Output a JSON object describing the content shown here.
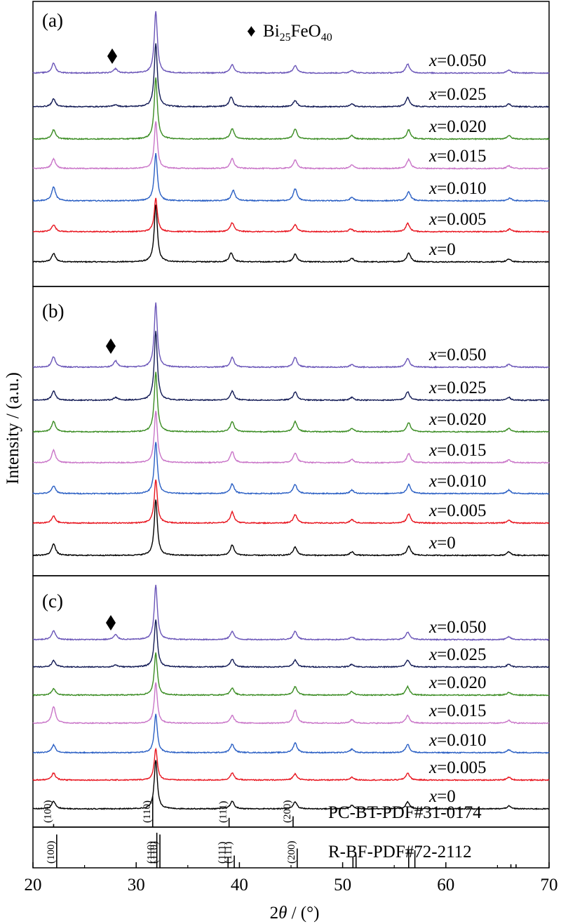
{
  "figure": {
    "ylabel": "Intensity / (a.u.)",
    "xlabel_prefix": "2",
    "xlabel_theta": "θ",
    "xlabel_suffix": " / (°)",
    "x_tick_labels": [
      "20",
      "30",
      "40",
      "50",
      "60",
      "70"
    ]
  },
  "chart_data": {
    "type": "line",
    "x_range": [
      20,
      70
    ],
    "x_ticks": [
      20,
      30,
      40,
      50,
      60,
      70
    ],
    "grid": false,
    "series_colors": {
      "x=0": "#000000",
      "x=0.005": "#e8141e",
      "x=0.010": "#2a5fc4",
      "x=0.015": "#c975c8",
      "x=0.020": "#3a8c22",
      "x=0.025": "#121a55",
      "x=0.050": "#6a55b8"
    },
    "bi25_marker_label": {
      "symbol": "♦",
      "base": "Bi",
      "sub1": "25",
      "mid": "FeO",
      "sub2": "40"
    },
    "panels": [
      {
        "label": "(a)",
        "series": [
          {
            "name": "x=0",
            "x_label": "x",
            "value_label": "=0",
            "color": "#000000",
            "peaks": [
              [
                22.0,
                12
              ],
              [
                31.9,
                82
              ],
              [
                39.2,
                13
              ],
              [
                45.4,
                11
              ],
              [
                50.9,
                5
              ],
              [
                56.4,
                13
              ],
              [
                66.1,
                4
              ]
            ]
          },
          {
            "name": "x=0.005",
            "x_label": "x",
            "value_label": "=0.005",
            "color": "#e8141e",
            "peaks": [
              [
                22.0,
                10
              ],
              [
                31.9,
                48
              ],
              [
                39.3,
                13
              ],
              [
                45.4,
                10
              ],
              [
                50.8,
                4
              ],
              [
                56.3,
                12
              ],
              [
                66.2,
                4
              ]
            ]
          },
          {
            "name": "x=0.010",
            "x_label": "x",
            "value_label": "=0.010",
            "color": "#2a5fc4",
            "peaks": [
              [
                22.0,
                20
              ],
              [
                31.9,
                68
              ],
              [
                39.4,
                15
              ],
              [
                45.4,
                17
              ],
              [
                50.9,
                5
              ],
              [
                56.4,
                13
              ],
              [
                66.2,
                4
              ]
            ]
          },
          {
            "name": "x=0.015",
            "x_label": "x",
            "value_label": "=0.015",
            "color": "#c975c8",
            "peaks": [
              [
                22.0,
                14
              ],
              [
                31.9,
                67
              ],
              [
                39.3,
                14
              ],
              [
                45.4,
                12
              ],
              [
                50.9,
                5
              ],
              [
                56.4,
                13
              ],
              [
                66.1,
                4
              ]
            ]
          },
          {
            "name": "x=0.020",
            "x_label": "x",
            "value_label": "=0.020",
            "color": "#3a8c22",
            "peaks": [
              [
                22.0,
                13
              ],
              [
                31.9,
                88
              ],
              [
                39.3,
                15
              ],
              [
                45.4,
                14
              ],
              [
                50.9,
                5
              ],
              [
                56.4,
                13
              ],
              [
                66.1,
                5
              ]
            ]
          },
          {
            "name": "x=0.025",
            "x_label": "x",
            "value_label": "=0.025",
            "color": "#121a55",
            "peaks": [
              [
                22.0,
                11
              ],
              [
                28.0,
                3
              ],
              [
                31.9,
                90
              ],
              [
                39.2,
                14
              ],
              [
                45.4,
                9
              ],
              [
                50.9,
                4
              ],
              [
                56.3,
                13
              ],
              [
                66.1,
                4
              ]
            ]
          },
          {
            "name": "x=0.050",
            "x_label": "x",
            "value_label": "=0.050",
            "color": "#6a55b8",
            "peaks": [
              [
                22.0,
                14
              ],
              [
                28.0,
                6
              ],
              [
                31.9,
                88
              ],
              [
                39.3,
                12
              ],
              [
                45.4,
                11
              ],
              [
                50.9,
                4
              ],
              [
                56.3,
                13
              ],
              [
                66.1,
                4
              ]
            ]
          }
        ]
      },
      {
        "label": "(b)",
        "series": [
          {
            "name": "x=0",
            "x_label": "x",
            "value_label": "=0",
            "color": "#000000",
            "peaks": [
              [
                22.0,
                17
              ],
              [
                31.9,
                80
              ],
              [
                39.3,
                15
              ],
              [
                45.4,
                12
              ],
              [
                50.9,
                5
              ],
              [
                56.4,
                13
              ],
              [
                66.1,
                5
              ]
            ]
          },
          {
            "name": "x=0.005",
            "x_label": "x",
            "value_label": "=0.005",
            "color": "#e8141e",
            "peaks": [
              [
                22.0,
                10
              ],
              [
                31.9,
                62
              ],
              [
                39.3,
                16
              ],
              [
                45.4,
                12
              ],
              [
                50.9,
                5
              ],
              [
                56.4,
                13
              ],
              [
                66.1,
                4
              ]
            ]
          },
          {
            "name": "x=0.010",
            "x_label": "x",
            "value_label": "=0.010",
            "color": "#2a5fc4",
            "peaks": [
              [
                22.0,
                11
              ],
              [
                31.9,
                74
              ],
              [
                39.3,
                14
              ],
              [
                45.4,
                13
              ],
              [
                50.9,
                5
              ],
              [
                56.4,
                13
              ],
              [
                66.1,
                5
              ]
            ]
          },
          {
            "name": "x=0.015",
            "x_label": "x",
            "value_label": "=0.015",
            "color": "#c975c8",
            "peaks": [
              [
                22.0,
                18
              ],
              [
                31.9,
                74
              ],
              [
                39.3,
                16
              ],
              [
                45.4,
                14
              ],
              [
                50.9,
                5
              ],
              [
                56.4,
                13
              ],
              [
                66.1,
                4
              ]
            ]
          },
          {
            "name": "x=0.020",
            "x_label": "x",
            "value_label": "=0.020",
            "color": "#3a8c22",
            "peaks": [
              [
                22.0,
                15
              ],
              [
                31.9,
                85
              ],
              [
                39.3,
                15
              ],
              [
                45.4,
                15
              ],
              [
                50.9,
                5
              ],
              [
                56.4,
                13
              ],
              [
                66.1,
                5
              ]
            ]
          },
          {
            "name": "x=0.025",
            "x_label": "x",
            "value_label": "=0.025",
            "color": "#121a55",
            "peaks": [
              [
                22.0,
                13
              ],
              [
                28.0,
                4
              ],
              [
                31.9,
                98
              ],
              [
                39.3,
                13
              ],
              [
                45.4,
                12
              ],
              [
                50.9,
                4
              ],
              [
                56.3,
                12
              ],
              [
                66.1,
                4
              ]
            ]
          },
          {
            "name": "x=0.050",
            "x_label": "x",
            "value_label": "=0.050",
            "color": "#6a55b8",
            "peaks": [
              [
                22.0,
                15
              ],
              [
                28.0,
                9
              ],
              [
                31.9,
                92
              ],
              [
                39.3,
                14
              ],
              [
                45.4,
                14
              ],
              [
                50.9,
                4
              ],
              [
                56.3,
                13
              ],
              [
                66.1,
                4
              ]
            ]
          }
        ]
      },
      {
        "label": "(c)",
        "series": [
          {
            "name": "x=0",
            "x_label": "x",
            "value_label": "=0",
            "color": "#000000",
            "peaks": [
              [
                22.0,
                11
              ],
              [
                31.9,
                70
              ],
              [
                39.3,
                11
              ],
              [
                45.4,
                10
              ],
              [
                50.9,
                5
              ],
              [
                56.3,
                10
              ],
              [
                66.1,
                4
              ]
            ]
          },
          {
            "name": "x=0.005",
            "x_label": "x",
            "value_label": "=0.005",
            "color": "#e8141e",
            "peaks": [
              [
                22.0,
                10
              ],
              [
                31.9,
                45
              ],
              [
                39.3,
                10
              ],
              [
                45.4,
                9
              ],
              [
                50.9,
                4
              ],
              [
                56.3,
                10
              ],
              [
                66.1,
                4
              ]
            ]
          },
          {
            "name": "x=0.010",
            "x_label": "x",
            "value_label": "=0.010",
            "color": "#2a5fc4",
            "peaks": [
              [
                22.0,
                11
              ],
              [
                31.9,
                55
              ],
              [
                39.3,
                12
              ],
              [
                45.4,
                14
              ],
              [
                50.9,
                5
              ],
              [
                56.3,
                12
              ],
              [
                66.1,
                4
              ]
            ]
          },
          {
            "name": "x=0.015",
            "x_label": "x",
            "value_label": "=0.015",
            "color": "#c975c8",
            "peaks": [
              [
                22.0,
                24
              ],
              [
                31.9,
                58
              ],
              [
                39.3,
                11
              ],
              [
                45.4,
                19
              ],
              [
                50.9,
                5
              ],
              [
                56.3,
                11
              ],
              [
                66.1,
                4
              ]
            ]
          },
          {
            "name": "x=0.020",
            "x_label": "x",
            "value_label": "=0.020",
            "color": "#3a8c22",
            "peaks": [
              [
                22.0,
                9
              ],
              [
                31.9,
                60
              ],
              [
                39.3,
                10
              ],
              [
                45.4,
                12
              ],
              [
                50.9,
                5
              ],
              [
                56.3,
                12
              ],
              [
                66.1,
                4
              ]
            ]
          },
          {
            "name": "x=0.025",
            "x_label": "x",
            "value_label": "=0.025",
            "color": "#121a55",
            "peaks": [
              [
                22.0,
                9
              ],
              [
                28.0,
                3
              ],
              [
                31.9,
                68
              ],
              [
                39.3,
                11
              ],
              [
                45.4,
                10
              ],
              [
                50.9,
                4
              ],
              [
                56.3,
                10
              ],
              [
                66.1,
                4
              ]
            ]
          },
          {
            "name": "x=0.050",
            "x_label": "x",
            "value_label": "=0.050",
            "color": "#6a55b8",
            "peaks": [
              [
                22.0,
                13
              ],
              [
                28.0,
                7
              ],
              [
                31.9,
                78
              ],
              [
                39.3,
                12
              ],
              [
                45.4,
                12
              ],
              [
                50.9,
                4
              ],
              [
                56.3,
                11
              ],
              [
                66.1,
                4
              ]
            ]
          }
        ]
      }
    ],
    "reference_patterns": [
      {
        "name": "PC-BT-PDF#31-0174",
        "lines": [
          {
            "x": 22.0,
            "h": 0.1
          },
          {
            "x": 31.6,
            "h": 1.0
          },
          {
            "x": 39.0,
            "h": 0.3
          },
          {
            "x": 45.2,
            "h": 0.35
          }
        ],
        "hkl": [
          {
            "x": 22.0,
            "text": "(100)"
          },
          {
            "x": 31.6,
            "text": "(110)"
          },
          {
            "x": 39.0,
            "text": "(111)"
          },
          {
            "x": 45.2,
            "text": "(200)"
          }
        ]
      },
      {
        "name": "R-BF-PDF#72-2112",
        "lines": [
          {
            "x": 22.3,
            "h": 0.95
          },
          {
            "x": 32.0,
            "h": 1.0
          },
          {
            "x": 32.3,
            "h": 0.95
          },
          {
            "x": 38.9,
            "h": 0.3
          },
          {
            "x": 39.5,
            "h": 0.35
          },
          {
            "x": 45.6,
            "h": 0.55
          },
          {
            "x": 51.0,
            "h": 0.3
          },
          {
            "x": 51.3,
            "h": 0.35
          },
          {
            "x": 56.4,
            "h": 0.5
          },
          {
            "x": 57.0,
            "h": 0.5
          },
          {
            "x": 66.3,
            "h": 0.1
          },
          {
            "x": 66.8,
            "h": 0.1
          }
        ],
        "hkl": [
          {
            "x": 22.3,
            "text": "(100)"
          },
          {
            "x": 32.0,
            "text": "(110)"
          },
          {
            "x": 32.3,
            "text": "(1̄1̄0)"
          },
          {
            "x": 38.9,
            "text": "(111)"
          },
          {
            "x": 39.5,
            "text": "(11̄1)"
          },
          {
            "x": 45.6,
            "text": "(200)"
          }
        ]
      }
    ]
  }
}
